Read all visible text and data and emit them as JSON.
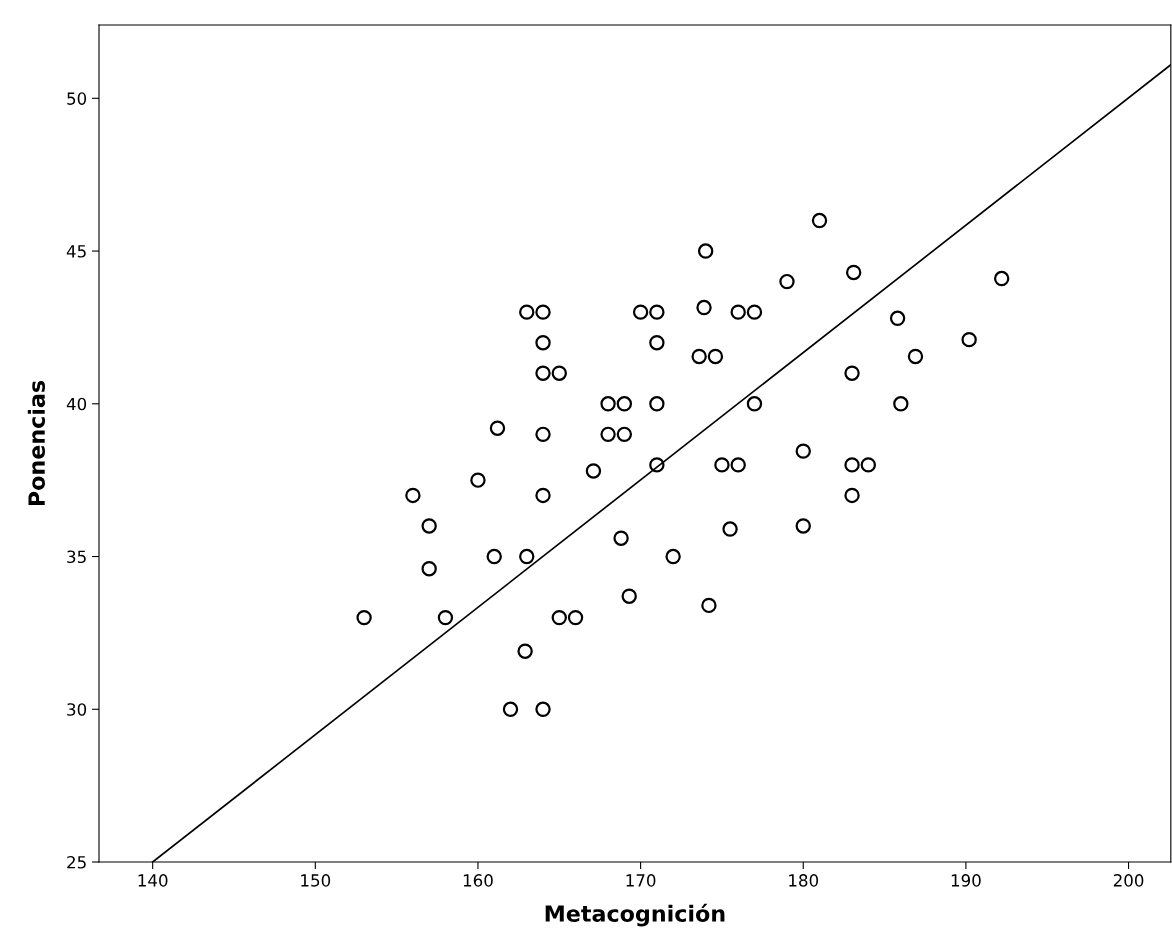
{
  "chart_data": {
    "type": "scatter",
    "xlabel": "Metacognición",
    "ylabel": "Ponencias",
    "xlim": [
      136.7,
      202.6
    ],
    "ylim": [
      25,
      52.4
    ],
    "xticks": [
      140,
      150,
      160,
      170,
      180,
      190,
      200
    ],
    "yticks": [
      25,
      30,
      35,
      40,
      45,
      50
    ],
    "grid": false,
    "legend": false,
    "series": [
      {
        "marker": "circle",
        "color": "#000000",
        "x": [
          153,
          156,
          157,
          157,
          158,
          160,
          161.2,
          161,
          163,
          164,
          164,
          164,
          165,
          164,
          164,
          163,
          162.9,
          162,
          164,
          165,
          166,
          167.1,
          168,
          169,
          168,
          169,
          168.8,
          169.3,
          170,
          171,
          171,
          171,
          171,
          172,
          173.6,
          174.6,
          173.9,
          174,
          174.2,
          175,
          176,
          175.5,
          176,
          177,
          177,
          179,
          180,
          180,
          181,
          183.1,
          183,
          183,
          184,
          183,
          185.8,
          186,
          186.9,
          190.2,
          192.2
        ],
        "values": [
          33,
          37,
          36,
          34.6,
          33,
          37.5,
          39.2,
          35,
          43,
          43,
          42,
          41,
          41,
          39,
          37,
          35,
          31.9,
          30,
          30,
          33,
          33,
          37.8,
          40,
          40,
          39,
          39,
          35.6,
          33.7,
          43,
          43,
          42,
          40,
          38,
          35,
          41.55,
          41.55,
          43.15,
          45,
          33.4,
          38,
          38,
          35.9,
          43,
          43,
          40,
          44,
          38.45,
          36,
          46,
          44.3,
          41,
          38,
          38,
          37,
          42.8,
          40,
          41.55,
          42.1,
          44.1
        ]
      },
      {
        "type": "line",
        "color": "#000000",
        "line_style": "solid",
        "x": [
          140,
          202.6
        ],
        "values": [
          25,
          51.1
        ]
      }
    ]
  }
}
